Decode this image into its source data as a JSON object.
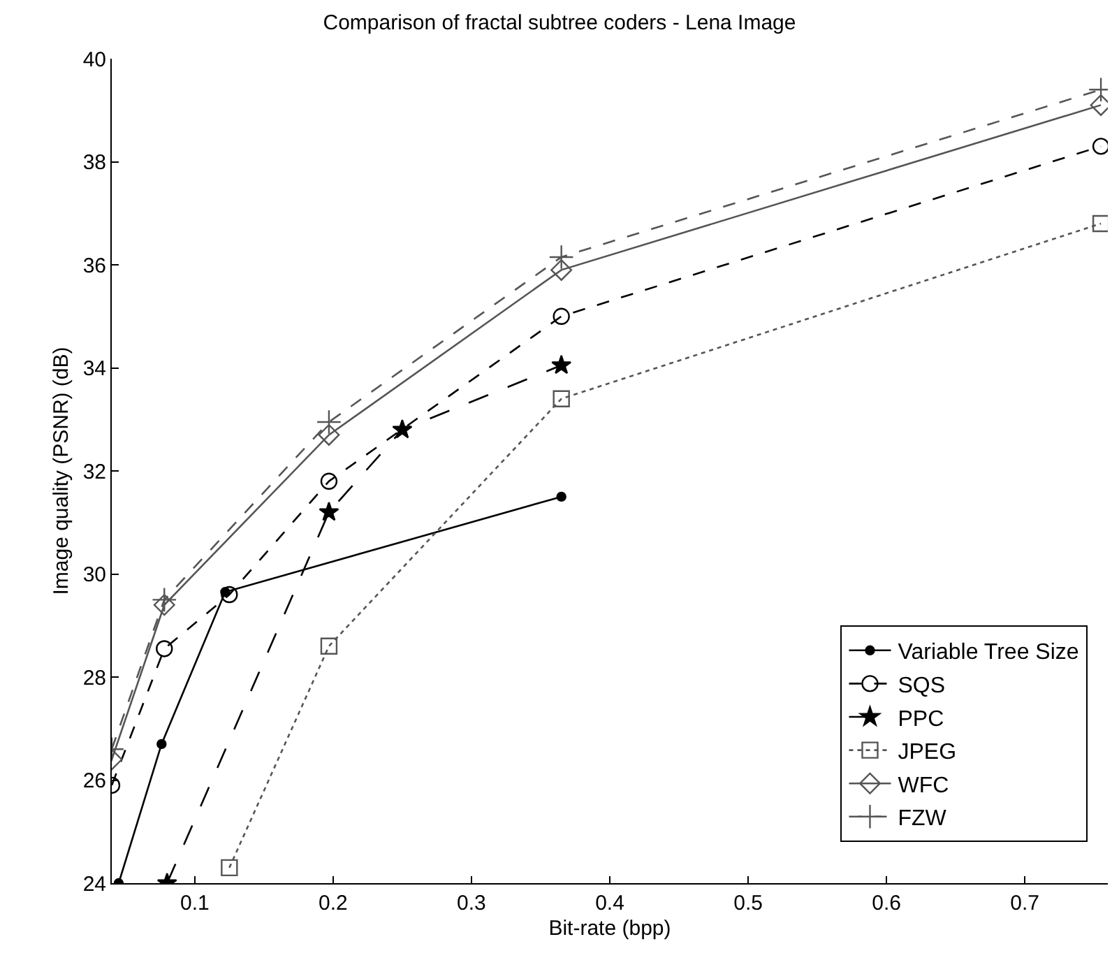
{
  "chart_data": {
    "type": "line",
    "title": "Comparison of fractal subtree coders - Lena Image",
    "xlabel": "Bit-rate (bpp)",
    "ylabel": "Image quality (PSNR) (dB)",
    "xlim": [
      0.04,
      0.76
    ],
    "xticks": [
      0.1,
      0.2,
      0.3,
      0.4,
      0.5,
      0.6,
      0.7
    ],
    "ylim": [
      24,
      40
    ],
    "yticks": [
      24,
      26,
      28,
      30,
      32,
      34,
      36,
      38,
      40
    ],
    "legend": "bottom right",
    "series": [
      {
        "name": "Variable Tree Size",
        "color": "#000000",
        "marker": "circle",
        "line_style": "solid",
        "x": [
          0.045,
          0.076,
          0.122,
          0.365
        ],
        "values": [
          24,
          26.7,
          29.65,
          31.5
        ]
      },
      {
        "name": "SQS",
        "color": "#000000",
        "marker": "circle-open",
        "line_style": "dashed",
        "x": [
          0.04,
          0.078,
          0.125,
          0.197,
          0.365,
          0.755
        ],
        "values": [
          25.9,
          28.55,
          29.6,
          31.8,
          35.0,
          38.3
        ]
      },
      {
        "name": "PPC",
        "color": "#000000",
        "marker": "star",
        "line_style": "longdash",
        "x": [
          0.08,
          0.197,
          0.25,
          0.365
        ],
        "values": [
          24,
          31.2,
          32.8,
          34.05
        ]
      },
      {
        "name": "JPEG",
        "color": "#555555",
        "marker": "square",
        "line_style": "dotted",
        "x": [
          0.125,
          0.197,
          0.365,
          0.755
        ],
        "values": [
          24.3,
          28.6,
          33.4,
          36.8
        ]
      },
      {
        "name": "WFC",
        "color": "#555555",
        "marker": "diamond",
        "line_style": "solid",
        "x": [
          0.04,
          0.078,
          0.197,
          0.365,
          0.755
        ],
        "values": [
          26.4,
          29.4,
          32.7,
          35.9,
          39.1
        ]
      },
      {
        "name": "FZW",
        "color": "#555555",
        "marker": "cross",
        "line_style": "dashed",
        "x": [
          0.04,
          0.078,
          0.197,
          0.365,
          0.755
        ],
        "values": [
          26.6,
          29.5,
          32.95,
          36.15,
          39.4
        ]
      }
    ]
  }
}
